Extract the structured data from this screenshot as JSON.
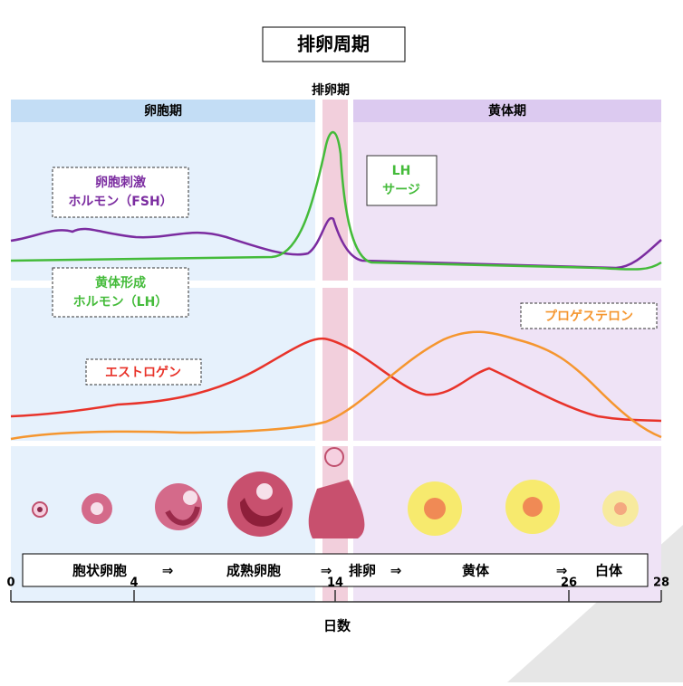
{
  "title": "排卵周期",
  "ovulation_label": "排卵期",
  "phases": [
    "卵胞期",
    "黄体期"
  ],
  "labels": {
    "fsh": [
      "卵胞刺激",
      "ホルモン（FSH）"
    ],
    "lh_surge": [
      "LH",
      "サージ"
    ],
    "lh": [
      "黄体形成",
      "ホルモン（LH）"
    ],
    "estrogen": "エストロゲン",
    "progesterone": "プロゲステロン"
  },
  "stages": [
    "胞状卵胞",
    "⇒",
    "成熟卵胞",
    "⇒",
    "排卵",
    "⇒",
    "黄体",
    "⇒",
    "白体"
  ],
  "x_axis": {
    "ticks": [
      0,
      4,
      14,
      26,
      28
    ],
    "label": "日数"
  }
}
